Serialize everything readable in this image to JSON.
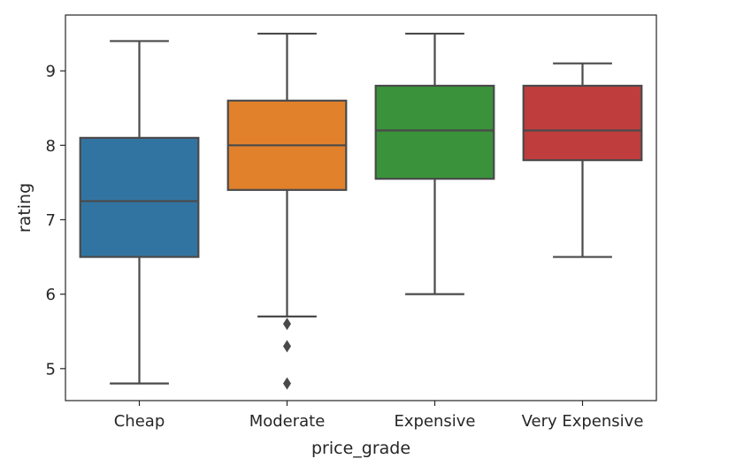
{
  "chart_data": {
    "type": "box",
    "xlabel": "price_grade",
    "ylabel": "rating",
    "categories": [
      "Cheap",
      "Moderate",
      "Expensive",
      "Very Expensive"
    ],
    "ylim": [
      4.57,
      9.75
    ],
    "yticks": [
      5,
      6,
      7,
      8,
      9
    ],
    "grid": false,
    "boxes": [
      {
        "category": "Cheap",
        "whisker_low": 4.8,
        "q1": 6.5,
        "median": 7.25,
        "q3": 8.1,
        "whisker_high": 9.4,
        "outliers": [],
        "color": "#3274a1"
      },
      {
        "category": "Moderate",
        "whisker_low": 5.7,
        "q1": 7.4,
        "median": 8.0,
        "q3": 8.6,
        "whisker_high": 9.5,
        "outliers": [
          5.6,
          5.3,
          4.8
        ],
        "color": "#e1812c"
      },
      {
        "category": "Expensive",
        "whisker_low": 6.0,
        "q1": 7.55,
        "median": 8.2,
        "q3": 8.8,
        "whisker_high": 9.5,
        "outliers": [],
        "color": "#3a923a"
      },
      {
        "category": "Very Expensive",
        "whisker_low": 6.5,
        "q1": 7.8,
        "median": 8.2,
        "q3": 8.8,
        "whisker_high": 9.1,
        "outliers": [],
        "color": "#c03d3e"
      }
    ]
  }
}
